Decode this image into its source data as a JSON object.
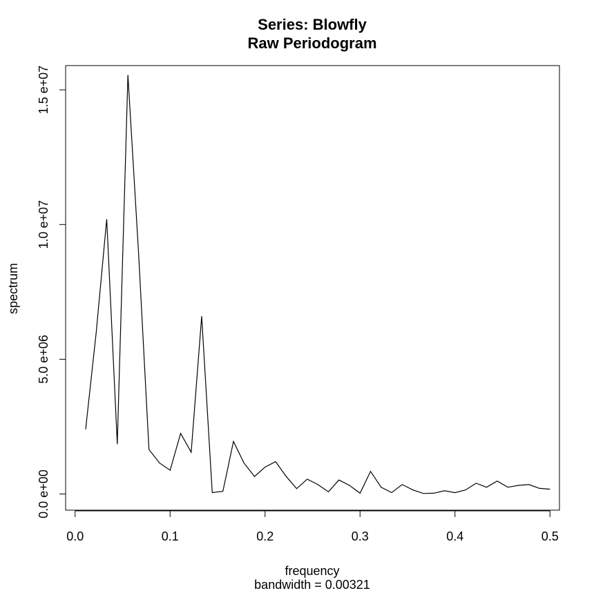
{
  "chart_data": {
    "type": "line",
    "title": "Series: Blowfly",
    "subtitle": "Raw Periodogram",
    "xlabel": "frequency",
    "xlabel_sub": "bandwidth = 0.00321",
    "ylabel": "spectrum",
    "xlim": [
      -0.01,
      0.51
    ],
    "ylim": [
      -600000,
      15900000
    ],
    "x_ticks": [
      0.0,
      0.1,
      0.2,
      0.3,
      0.4,
      0.5
    ],
    "x_tick_labels": [
      "0.0",
      "0.1",
      "0.2",
      "0.3",
      "0.4",
      "0.5"
    ],
    "y_ticks": [
      0,
      5000000,
      10000000,
      15000000
    ],
    "y_tick_labels": [
      "0.0 e+00",
      "5.0 e+06",
      "1.0 e+07",
      "1.5 e+07"
    ],
    "grid": false,
    "legend": "none",
    "line_color": "#000000",
    "x": [
      0.0111,
      0.0222,
      0.0333,
      0.0444,
      0.0556,
      0.0667,
      0.0778,
      0.0889,
      0.1,
      0.1111,
      0.1222,
      0.1333,
      0.1444,
      0.1556,
      0.1667,
      0.1778,
      0.1889,
      0.2,
      0.2111,
      0.2222,
      0.2333,
      0.2444,
      0.2556,
      0.2667,
      0.2778,
      0.2889,
      0.3,
      0.3111,
      0.3222,
      0.3333,
      0.3444,
      0.3556,
      0.3667,
      0.3778,
      0.3889,
      0.4,
      0.4111,
      0.4222,
      0.4333,
      0.4444,
      0.4556,
      0.4667,
      0.4778,
      0.4889,
      0.5
    ],
    "y": [
      2400000,
      6000000,
      10200000,
      1850000,
      15550000,
      9000000,
      1650000,
      1150000,
      880000,
      2250000,
      1550000,
      6600000,
      50000,
      100000,
      1950000,
      1150000,
      650000,
      1000000,
      1200000,
      650000,
      200000,
      550000,
      350000,
      80000,
      520000,
      320000,
      30000,
      840000,
      250000,
      50000,
      350000,
      150000,
      20000,
      30000,
      120000,
      50000,
      150000,
      400000,
      250000,
      480000,
      250000,
      320000,
      350000,
      210000,
      180000
    ]
  }
}
